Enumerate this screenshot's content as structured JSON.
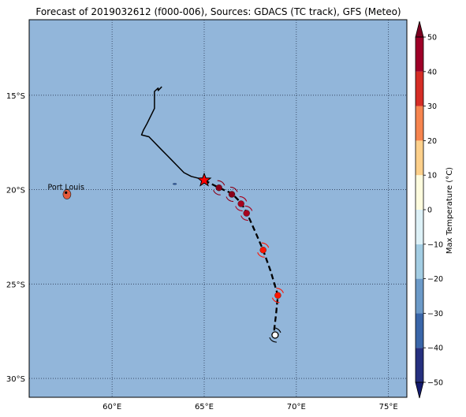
{
  "title": "Forecast of 2019032612 (f000-006), Sources: GDACS (TC track), GFS (Meteo)",
  "colors": {
    "ocean": "#92b6da",
    "grid": "#2b3a55",
    "track": "#000000"
  },
  "map": {
    "lon_range": [
      55.5,
      76
    ],
    "lat_range": [
      -31,
      -11
    ],
    "lon_ticks": [
      {
        "value": 60,
        "label": "60°E"
      },
      {
        "value": 65,
        "label": "65°E"
      },
      {
        "value": 70,
        "label": "70°E"
      },
      {
        "value": 75,
        "label": "75°E"
      }
    ],
    "lat_ticks": [
      {
        "value": -15,
        "label": "15°S"
      },
      {
        "value": -20,
        "label": "20°S"
      },
      {
        "value": -25,
        "label": "25°S"
      },
      {
        "value": -30,
        "label": "30°S"
      }
    ],
    "places": [
      {
        "name": "Port Louis",
        "lon": 57.5,
        "lat": -20.16
      }
    ],
    "past_track": [
      [
        62.7,
        -14.55
      ],
      [
        62.5,
        -14.75
      ],
      [
        62.5,
        -14.62
      ],
      [
        62.3,
        -14.8
      ],
      [
        62.3,
        -15.7
      ],
      [
        61.9,
        -16.5
      ],
      [
        61.7,
        -16.85
      ],
      [
        61.6,
        -17.1
      ],
      [
        62.0,
        -17.2
      ],
      [
        62.7,
        -17.9
      ],
      [
        63.0,
        -18.2
      ],
      [
        63.2,
        -18.4
      ],
      [
        63.5,
        -18.7
      ],
      [
        63.9,
        -19.1
      ],
      [
        64.3,
        -19.3
      ],
      [
        64.7,
        -19.4
      ],
      [
        65.0,
        -19.5
      ]
    ],
    "forecast_track": [
      [
        65.0,
        -19.5
      ],
      [
        65.8,
        -19.9
      ],
      [
        66.5,
        -20.2
      ],
      [
        67.0,
        -20.7
      ],
      [
        67.3,
        -21.2
      ],
      [
        67.8,
        -22.3
      ],
      [
        68.2,
        -23.2
      ],
      [
        68.6,
        -24.3
      ],
      [
        69.0,
        -25.6
      ],
      [
        68.9,
        -26.6
      ],
      [
        68.8,
        -27.4
      ],
      [
        68.9,
        -27.8
      ]
    ],
    "current_position": {
      "lon": 65.0,
      "lat": -19.5
    },
    "storm_symbols": [
      {
        "lon": 65.8,
        "lat": -19.9,
        "color": "#8b0018"
      },
      {
        "lon": 66.5,
        "lat": -20.25,
        "color": "#8b0018"
      },
      {
        "lon": 67.0,
        "lat": -20.75,
        "color": "#a7031e"
      },
      {
        "lon": 67.3,
        "lat": -21.25,
        "color": "#a7031e"
      },
      {
        "lon": 68.2,
        "lat": -23.2,
        "color": "#ff1500"
      },
      {
        "lon": 69.0,
        "lat": -25.6,
        "color": "#ff1500"
      },
      {
        "lon": 68.85,
        "lat": -27.7,
        "color": "#ffffff"
      }
    ],
    "islands": [
      {
        "lon": 57.55,
        "lat": -20.25,
        "color": "#e55a3c"
      },
      {
        "lon": 63.4,
        "lat": -19.7,
        "color": "#2a5aa8"
      }
    ]
  },
  "colorbar": {
    "label": "Max Temperature (°C)",
    "vmin": -50,
    "vmax": 50,
    "ticks": [
      {
        "value": 50,
        "label": "50"
      },
      {
        "value": 40,
        "label": "40"
      },
      {
        "value": 30,
        "label": "30"
      },
      {
        "value": 20,
        "label": "20"
      },
      {
        "value": 10,
        "label": "10"
      },
      {
        "value": 0,
        "label": "0"
      },
      {
        "value": -10,
        "label": "−10"
      },
      {
        "value": -20,
        "label": "−20"
      },
      {
        "value": -30,
        "label": "−30"
      },
      {
        "value": -40,
        "label": "−40"
      },
      {
        "value": -50,
        "label": "−50"
      }
    ],
    "bands": [
      {
        "from": -50,
        "to": -40,
        "color": "#26307f"
      },
      {
        "from": -40,
        "to": -30,
        "color": "#3a66a9"
      },
      {
        "from": -30,
        "to": -20,
        "color": "#6c9ac8"
      },
      {
        "from": -20,
        "to": -10,
        "color": "#a3cde3"
      },
      {
        "from": -10,
        "to": 0,
        "color": "#ddf1f7"
      },
      {
        "from": 0,
        "to": 10,
        "color": "#fefcde"
      },
      {
        "from": 10,
        "to": 20,
        "color": "#fdd08b"
      },
      {
        "from": 20,
        "to": 30,
        "color": "#f6854f"
      },
      {
        "from": 30,
        "to": 40,
        "color": "#d52d26"
      },
      {
        "from": 40,
        "to": 50,
        "color": "#9e0028"
      }
    ],
    "extend_low_color": "#141b6e",
    "extend_high_color": "#7a0020"
  }
}
